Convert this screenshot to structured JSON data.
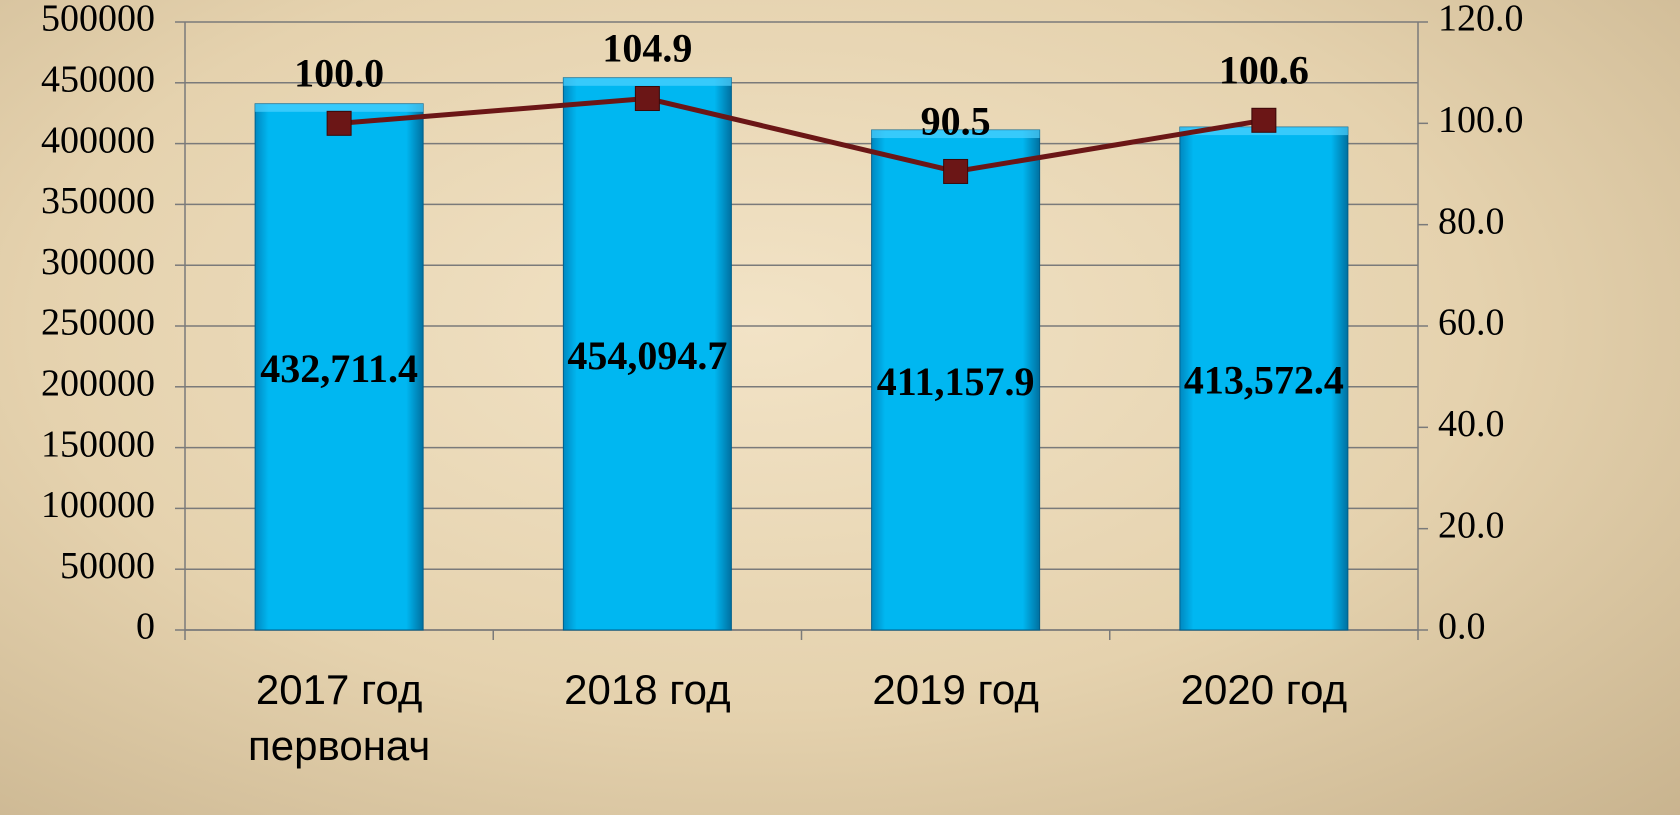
{
  "chart_data": {
    "type": "combo",
    "categories": [
      "2017 год первонач",
      "2018 год",
      "2019 год",
      "2020 год"
    ],
    "series": [
      {
        "type": "bar",
        "color": "#00b7f1",
        "values": [
          432711.4,
          454094.7,
          411157.9,
          413572.4
        ],
        "value_labels": [
          "432,711.4",
          "454,094.7",
          "411,157.9",
          "413,572.4"
        ]
      },
      {
        "type": "line",
        "axis": "y2",
        "color": "#6b1616",
        "values": [
          100.0,
          104.9,
          90.5,
          100.6
        ],
        "value_labels": [
          "100.0",
          "104.9",
          "90.5",
          "100.6"
        ]
      }
    ],
    "ylim": [
      0,
      500000
    ],
    "yticks": [
      0,
      50000,
      100000,
      150000,
      200000,
      250000,
      300000,
      350000,
      400000,
      450000,
      500000
    ],
    "y2lim": [
      0,
      120
    ],
    "y2ticks": [
      {
        "value": 0,
        "label": "0.0"
      },
      {
        "value": 20,
        "label": "20.0"
      },
      {
        "value": 40,
        "label": "40.0"
      },
      {
        "value": 60,
        "label": "60.0"
      },
      {
        "value": 80,
        "label": "80.0"
      },
      {
        "value": 100,
        "label": "100.0"
      },
      {
        "value": 120,
        "label": "120.0"
      }
    ],
    "grid": true
  }
}
